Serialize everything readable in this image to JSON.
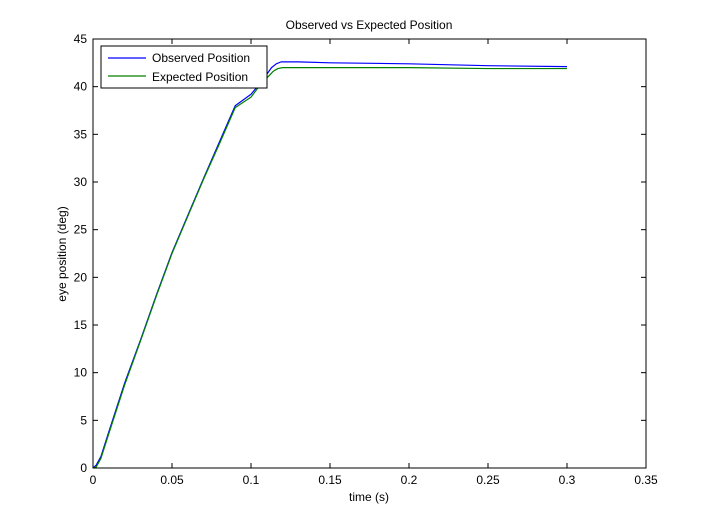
{
  "chart_data": {
    "type": "line",
    "title": "Observed vs Expected Position",
    "xlabel": "time (s)",
    "ylabel": "eye position (deg)",
    "xlim": [
      0,
      0.35
    ],
    "ylim": [
      0,
      45
    ],
    "xticks": [
      0,
      0.05,
      0.1,
      0.15,
      0.2,
      0.25,
      0.3,
      0.35
    ],
    "xtick_labels": [
      "0",
      "0.05",
      "0.1",
      "0.15",
      "0.2",
      "0.25",
      "0.3",
      "0.35"
    ],
    "yticks": [
      0,
      5,
      10,
      15,
      20,
      25,
      30,
      35,
      40,
      45
    ],
    "ytick_labels": [
      "0",
      "5",
      "10",
      "15",
      "20",
      "25",
      "30",
      "35",
      "40",
      "45"
    ],
    "grid": false,
    "legend_position": "top-left",
    "series": [
      {
        "name": "Observed Position",
        "color": "#0000ff",
        "x": [
          0,
          0.002,
          0.005,
          0.01,
          0.02,
          0.03,
          0.04,
          0.05,
          0.06,
          0.07,
          0.08,
          0.09,
          0.1,
          0.105,
          0.11,
          0.113,
          0.116,
          0.119,
          0.122,
          0.125,
          0.13,
          0.15,
          0.2,
          0.25,
          0.3
        ],
        "y": [
          0,
          0.3,
          1.2,
          3.8,
          8.9,
          13.4,
          18.1,
          22.6,
          26.5,
          30.4,
          34.2,
          38.0,
          39.2,
          40.2,
          41.3,
          42.0,
          42.4,
          42.6,
          42.6,
          42.6,
          42.6,
          42.5,
          42.4,
          42.2,
          42.1
        ]
      },
      {
        "name": "Expected Position",
        "color": "#008000",
        "x": [
          0,
          0.002,
          0.005,
          0.01,
          0.02,
          0.03,
          0.04,
          0.05,
          0.06,
          0.07,
          0.08,
          0.09,
          0.1,
          0.105,
          0.11,
          0.114,
          0.117,
          0.12,
          0.123,
          0.13,
          0.15,
          0.2,
          0.25,
          0.3
        ],
        "y": [
          0,
          0.1,
          1.0,
          3.6,
          8.7,
          13.3,
          18.0,
          22.5,
          26.4,
          30.3,
          34.0,
          37.8,
          38.9,
          40.0,
          40.9,
          41.6,
          41.9,
          42.0,
          42.0,
          42.0,
          42.0,
          42.0,
          41.9,
          41.9
        ]
      }
    ]
  }
}
